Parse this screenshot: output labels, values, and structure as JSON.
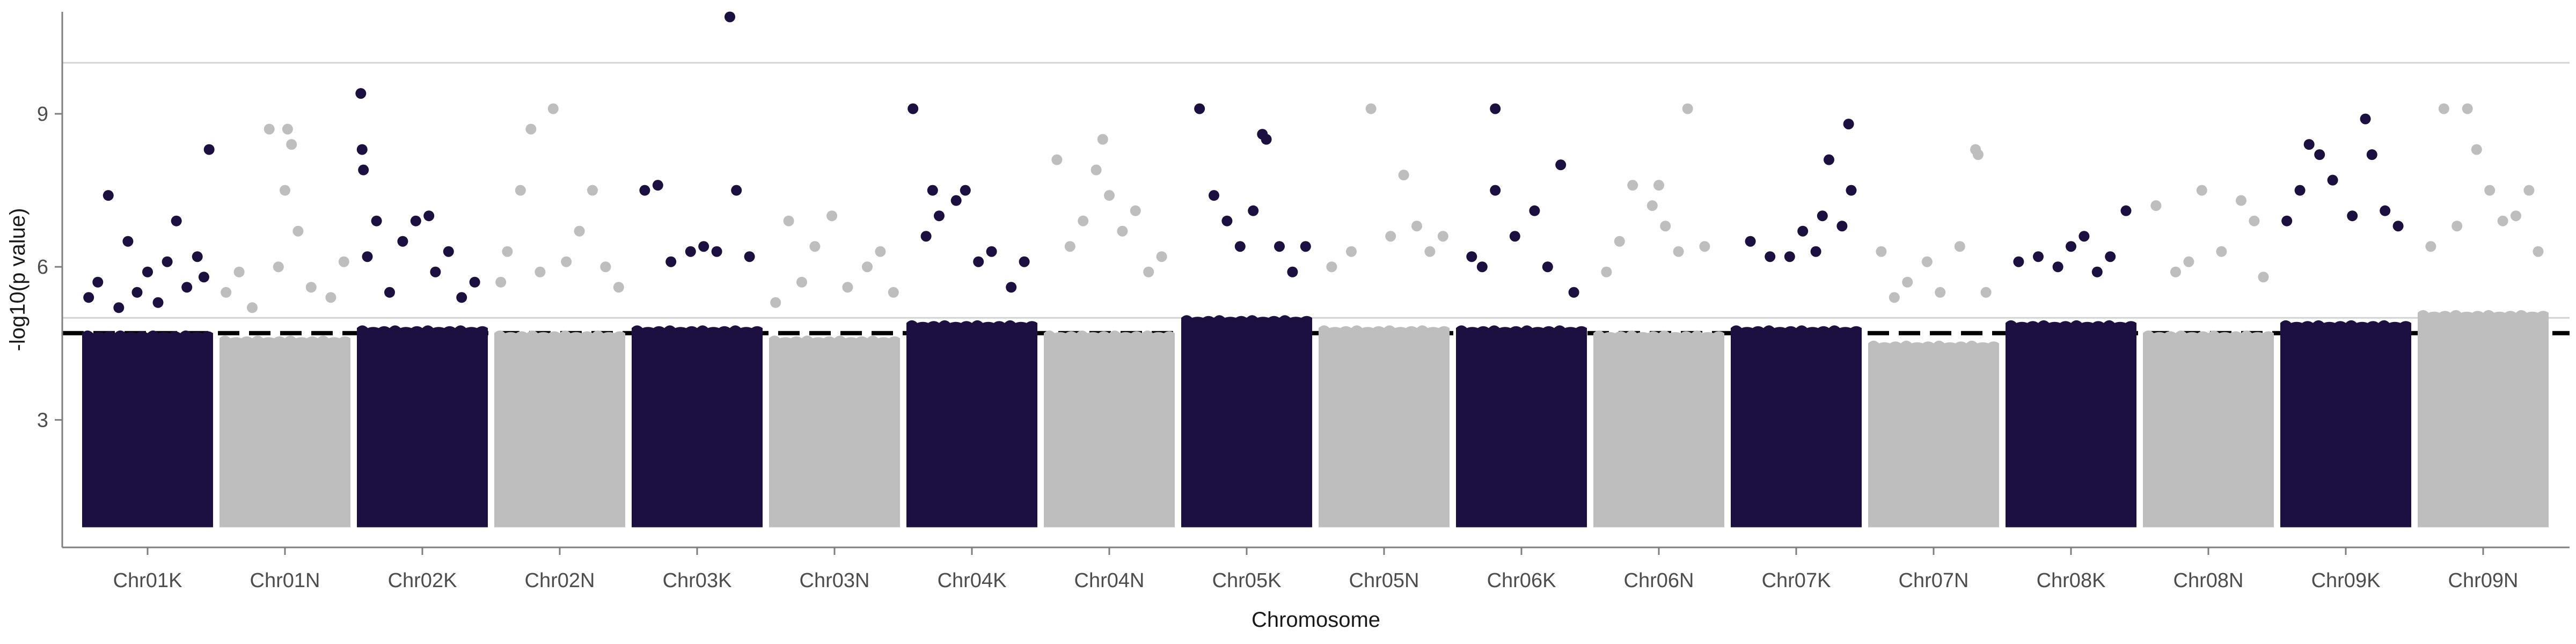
{
  "chart_data": {
    "type": "scatter",
    "subtype": "manhattan",
    "title": "",
    "xlabel": "Chromosome",
    "ylabel": "-log10(p value)",
    "ylim": [
      0.5,
      11
    ],
    "yticks": [
      3,
      6,
      9
    ],
    "grid": false,
    "legend": "none",
    "colors": {
      "dark": "#1c1040",
      "light": "#bebebe"
    },
    "reference_lines": [
      {
        "y": 4.7,
        "style": "dashed",
        "color": "#000000"
      },
      {
        "y": 5.0,
        "style": "solid",
        "color": "#d3d3d3"
      },
      {
        "y": 10.0,
        "style": "solid",
        "color": "#d3d3d3"
      }
    ],
    "chromosomes": [
      {
        "name": "Chr01K",
        "color": "dark",
        "dense_top": 4.7,
        "points": [
          [
            0.05,
            5.4
          ],
          [
            0.12,
            5.7
          ],
          [
            0.2,
            7.4
          ],
          [
            0.28,
            5.2
          ],
          [
            0.35,
            6.5
          ],
          [
            0.42,
            5.5
          ],
          [
            0.5,
            5.9
          ],
          [
            0.58,
            5.3
          ],
          [
            0.65,
            6.1
          ],
          [
            0.72,
            6.9
          ],
          [
            0.8,
            5.6
          ],
          [
            0.88,
            6.2
          ],
          [
            0.93,
            5.8
          ],
          [
            0.97,
            8.3
          ]
        ]
      },
      {
        "name": "Chr01N",
        "color": "light",
        "dense_top": 4.6,
        "points": [
          [
            0.05,
            5.5
          ],
          [
            0.15,
            5.9
          ],
          [
            0.25,
            5.2
          ],
          [
            0.38,
            8.7
          ],
          [
            0.45,
            6.0
          ],
          [
            0.5,
            7.5
          ],
          [
            0.52,
            8.7
          ],
          [
            0.55,
            8.4
          ],
          [
            0.6,
            6.7
          ],
          [
            0.7,
            5.6
          ],
          [
            0.85,
            5.4
          ],
          [
            0.95,
            6.1
          ]
        ]
      },
      {
        "name": "Chr02K",
        "color": "dark",
        "dense_top": 4.8,
        "points": [
          [
            0.03,
            9.4
          ],
          [
            0.04,
            8.3
          ],
          [
            0.05,
            7.9
          ],
          [
            0.08,
            6.2
          ],
          [
            0.15,
            6.9
          ],
          [
            0.25,
            5.5
          ],
          [
            0.35,
            6.5
          ],
          [
            0.45,
            6.9
          ],
          [
            0.55,
            7.0
          ],
          [
            0.6,
            5.9
          ],
          [
            0.7,
            6.3
          ],
          [
            0.8,
            5.4
          ],
          [
            0.9,
            5.7
          ]
        ]
      },
      {
        "name": "Chr02N",
        "color": "light",
        "dense_top": 4.7,
        "points": [
          [
            0.05,
            5.7
          ],
          [
            0.1,
            6.3
          ],
          [
            0.2,
            7.5
          ],
          [
            0.28,
            8.7
          ],
          [
            0.35,
            5.9
          ],
          [
            0.45,
            9.1
          ],
          [
            0.55,
            6.1
          ],
          [
            0.65,
            6.7
          ],
          [
            0.75,
            7.5
          ],
          [
            0.85,
            6.0
          ],
          [
            0.95,
            5.6
          ]
        ]
      },
      {
        "name": "Chr03K",
        "color": "dark",
        "dense_top": 4.8,
        "points": [
          [
            0.1,
            7.5
          ],
          [
            0.2,
            7.6
          ],
          [
            0.3,
            6.1
          ],
          [
            0.45,
            6.3
          ],
          [
            0.55,
            6.4
          ],
          [
            0.65,
            6.3
          ],
          [
            0.75,
            10.9
          ],
          [
            0.8,
            7.5
          ],
          [
            0.9,
            6.2
          ]
        ]
      },
      {
        "name": "Chr03N",
        "color": "light",
        "dense_top": 4.6,
        "points": [
          [
            0.05,
            5.3
          ],
          [
            0.15,
            6.9
          ],
          [
            0.25,
            5.7
          ],
          [
            0.35,
            6.4
          ],
          [
            0.48,
            7.0
          ],
          [
            0.6,
            5.6
          ],
          [
            0.75,
            6.0
          ],
          [
            0.85,
            6.3
          ],
          [
            0.95,
            5.5
          ]
        ]
      },
      {
        "name": "Chr04K",
        "color": "dark",
        "dense_top": 4.9,
        "points": [
          [
            0.05,
            9.1
          ],
          [
            0.15,
            6.6
          ],
          [
            0.2,
            7.5
          ],
          [
            0.25,
            7.0
          ],
          [
            0.38,
            7.3
          ],
          [
            0.45,
            7.5
          ],
          [
            0.55,
            6.1
          ],
          [
            0.65,
            6.3
          ],
          [
            0.8,
            5.6
          ],
          [
            0.9,
            6.1
          ]
        ]
      },
      {
        "name": "Chr04N",
        "color": "light",
        "dense_top": 4.7,
        "points": [
          [
            0.1,
            8.1
          ],
          [
            0.2,
            6.4
          ],
          [
            0.3,
            6.9
          ],
          [
            0.4,
            7.9
          ],
          [
            0.45,
            8.5
          ],
          [
            0.5,
            7.4
          ],
          [
            0.6,
            6.7
          ],
          [
            0.7,
            7.1
          ],
          [
            0.8,
            5.9
          ],
          [
            0.9,
            6.2
          ]
        ]
      },
      {
        "name": "Chr05K",
        "color": "dark",
        "dense_top": 5.0,
        "points": [
          [
            0.14,
            9.1
          ],
          [
            0.25,
            7.4
          ],
          [
            0.35,
            6.9
          ],
          [
            0.45,
            6.4
          ],
          [
            0.55,
            7.1
          ],
          [
            0.62,
            8.6
          ],
          [
            0.65,
            8.5
          ],
          [
            0.75,
            6.4
          ],
          [
            0.85,
            5.9
          ],
          [
            0.95,
            6.4
          ]
        ]
      },
      {
        "name": "Chr05N",
        "color": "light",
        "dense_top": 4.8,
        "points": [
          [
            0.1,
            6.0
          ],
          [
            0.25,
            6.3
          ],
          [
            0.4,
            9.1
          ],
          [
            0.55,
            6.6
          ],
          [
            0.65,
            7.8
          ],
          [
            0.75,
            6.8
          ],
          [
            0.85,
            6.3
          ],
          [
            0.95,
            6.6
          ]
        ]
      },
      {
        "name": "Chr06K",
        "color": "dark",
        "dense_top": 4.8,
        "points": [
          [
            0.12,
            6.2
          ],
          [
            0.2,
            6.0
          ],
          [
            0.3,
            7.5
          ],
          [
            0.3,
            9.1
          ],
          [
            0.45,
            6.6
          ],
          [
            0.6,
            7.1
          ],
          [
            0.7,
            6.0
          ],
          [
            0.8,
            8.0
          ],
          [
            0.9,
            5.5
          ]
        ]
      },
      {
        "name": "Chr06N",
        "color": "light",
        "dense_top": 4.7,
        "points": [
          [
            0.1,
            5.9
          ],
          [
            0.2,
            6.5
          ],
          [
            0.3,
            7.6
          ],
          [
            0.45,
            7.2
          ],
          [
            0.5,
            7.6
          ],
          [
            0.55,
            6.8
          ],
          [
            0.65,
            6.3
          ],
          [
            0.72,
            9.1
          ],
          [
            0.85,
            6.4
          ]
        ]
      },
      {
        "name": "Chr07K",
        "color": "dark",
        "dense_top": 4.8,
        "points": [
          [
            0.15,
            6.5
          ],
          [
            0.3,
            6.2
          ],
          [
            0.45,
            6.2
          ],
          [
            0.55,
            6.7
          ],
          [
            0.65,
            6.3
          ],
          [
            0.7,
            7.0
          ],
          [
            0.75,
            8.1
          ],
          [
            0.85,
            6.8
          ],
          [
            0.9,
            8.8
          ],
          [
            0.92,
            7.5
          ]
        ]
      },
      {
        "name": "Chr07N",
        "color": "light",
        "dense_top": 4.5,
        "points": [
          [
            0.1,
            6.3
          ],
          [
            0.2,
            5.4
          ],
          [
            0.3,
            5.7
          ],
          [
            0.45,
            6.1
          ],
          [
            0.55,
            5.5
          ],
          [
            0.7,
            6.4
          ],
          [
            0.82,
            8.3
          ],
          [
            0.84,
            8.2
          ],
          [
            0.9,
            5.5
          ]
        ]
      },
      {
        "name": "Chr08K",
        "color": "dark",
        "dense_top": 4.9,
        "points": [
          [
            0.1,
            6.1
          ],
          [
            0.25,
            6.2
          ],
          [
            0.4,
            6.0
          ],
          [
            0.5,
            6.4
          ],
          [
            0.6,
            6.6
          ],
          [
            0.7,
            5.9
          ],
          [
            0.8,
            6.2
          ],
          [
            0.92,
            7.1
          ]
        ]
      },
      {
        "name": "Chr08N",
        "color": "light",
        "dense_top": 4.7,
        "points": [
          [
            0.1,
            7.2
          ],
          [
            0.25,
            5.9
          ],
          [
            0.35,
            6.1
          ],
          [
            0.45,
            7.5
          ],
          [
            0.6,
            6.3
          ],
          [
            0.75,
            7.3
          ],
          [
            0.85,
            6.9
          ],
          [
            0.92,
            5.8
          ]
        ]
      },
      {
        "name": "Chr09K",
        "color": "dark",
        "dense_top": 4.9,
        "points": [
          [
            0.05,
            6.9
          ],
          [
            0.15,
            7.5
          ],
          [
            0.22,
            8.4
          ],
          [
            0.3,
            8.2
          ],
          [
            0.4,
            7.7
          ],
          [
            0.55,
            7.0
          ],
          [
            0.65,
            8.9
          ],
          [
            0.7,
            8.2
          ],
          [
            0.8,
            7.1
          ],
          [
            0.9,
            6.8
          ]
        ]
      },
      {
        "name": "Chr09N",
        "color": "light",
        "dense_top": 5.1,
        "points": [
          [
            0.1,
            6.4
          ],
          [
            0.2,
            9.1
          ],
          [
            0.3,
            6.8
          ],
          [
            0.38,
            9.1
          ],
          [
            0.45,
            8.3
          ],
          [
            0.55,
            7.5
          ],
          [
            0.65,
            6.9
          ],
          [
            0.75,
            7.0
          ],
          [
            0.85,
            7.5
          ],
          [
            0.92,
            6.3
          ]
        ]
      }
    ]
  }
}
